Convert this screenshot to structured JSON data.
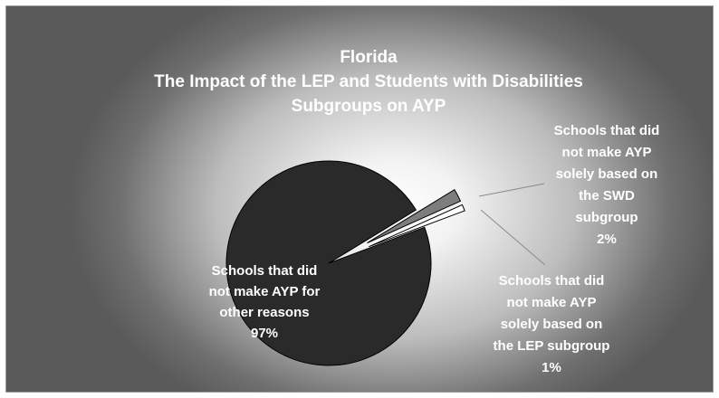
{
  "chart_data": {
    "type": "pie",
    "title_lines": [
      "Florida",
      "The Impact of the LEP and Students with Disabilities",
      "Subgroups on AYP"
    ],
    "slices": [
      {
        "name": "Schools that did not make AYP for other reasons",
        "value": 97,
        "value_label": "97%",
        "label_lines": [
          "Schools that did",
          "not make AYP for",
          "other reasons"
        ],
        "color": "#2a2a2a",
        "exploded": false
      },
      {
        "name": "Schools that did not make AYP solely based on the SWD subgroup",
        "value": 2,
        "value_label": "2%",
        "label_lines": [
          "Schools that did",
          "not make AYP",
          "solely based on",
          "the SWD",
          "subgroup"
        ],
        "color": "#7d7d7d",
        "exploded": true
      },
      {
        "name": "Schools that did not make AYP solely based on the LEP subgroup",
        "value": 1,
        "value_label": "1%",
        "label_lines": [
          "Schools that did",
          "not make AYP",
          "solely based on",
          "the LEP subgroup"
        ],
        "color": "#ffffff",
        "exploded": true
      }
    ],
    "colors": {
      "background_center": "#ffffff",
      "background_edge": "#5a5a5a",
      "text": "#ffffff"
    }
  }
}
